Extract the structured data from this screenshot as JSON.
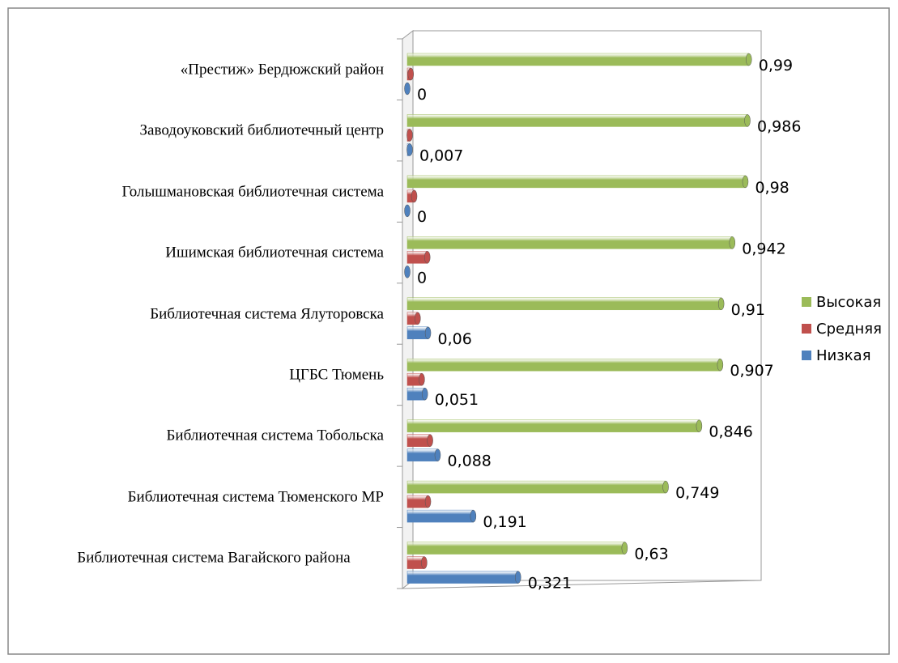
{
  "chart_data": {
    "type": "hbar",
    "categories": [
      "«Престиж» Бердюжский район",
      "Заводоуковский библиотечный центр",
      "Голышмановская библиотечная система",
      "Ишимская библиотечная система",
      "Библиотечная система Ялуторовска",
      "ЦГБС Тюмень",
      "Библиотечная система Тобольска",
      "Библиотечная система Тюменского МР",
      "Библиотечная система Вагайского района"
    ],
    "series": [
      {
        "name": "Высокая",
        "color": "#9bbb59",
        "values": [
          0.99,
          0.986,
          0.98,
          0.942,
          0.91,
          0.907,
          0.846,
          0.749,
          0.63
        ],
        "value_labels": [
          "0,99",
          "0,986",
          "0,98",
          "0,942",
          "0,91",
          "0,907",
          "0,846",
          "0,749",
          "0,63"
        ]
      },
      {
        "name": "Средняя",
        "color": "#c0504d",
        "values": [
          0.01,
          0.007,
          0.02,
          0.058,
          0.03,
          0.042,
          0.066,
          0.06,
          0.049
        ]
      },
      {
        "name": "Низкая",
        "color": "#4f81bd",
        "values": [
          0,
          0.007,
          0,
          0,
          0.06,
          0.051,
          0.088,
          0.191,
          0.321
        ],
        "value_labels": [
          "0",
          "0,007",
          "0",
          "0",
          "0,06",
          "0,051",
          "0,088",
          "0,191",
          "0,321"
        ]
      }
    ],
    "xlim": [
      0,
      1
    ],
    "legend": "right"
  }
}
